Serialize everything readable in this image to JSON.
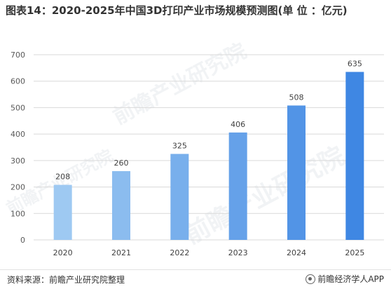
{
  "title": "图表14：2020-2025年中国3D打印产业市场规模预测图(单 位 ：亿元)",
  "source_text": "资料来源：前瞻产业研究院整理",
  "brand_text": "前瞻经济学人APP",
  "watermark_text": "前瞻产业研究院",
  "colors": {
    "bar_start": "#9ec9f2",
    "bar_end": "#3f87e3",
    "grid": "#d9d9d9",
    "axis": "#595959"
  },
  "chart_data": {
    "type": "bar",
    "title": "图表14：2020-2025年中国3D打印产业市场规模预测图(单 位 ：亿元)",
    "categories": [
      "2020",
      "2021",
      "2022",
      "2023",
      "2024",
      "2025"
    ],
    "values": [
      208,
      260,
      325,
      406,
      508,
      635
    ],
    "ylim": [
      0,
      700
    ],
    "yticks": [
      0,
      100,
      200,
      300,
      400,
      500,
      600,
      700
    ],
    "xlabel": "",
    "ylabel": "",
    "grid": true,
    "legend": "none",
    "data_labels": true
  }
}
